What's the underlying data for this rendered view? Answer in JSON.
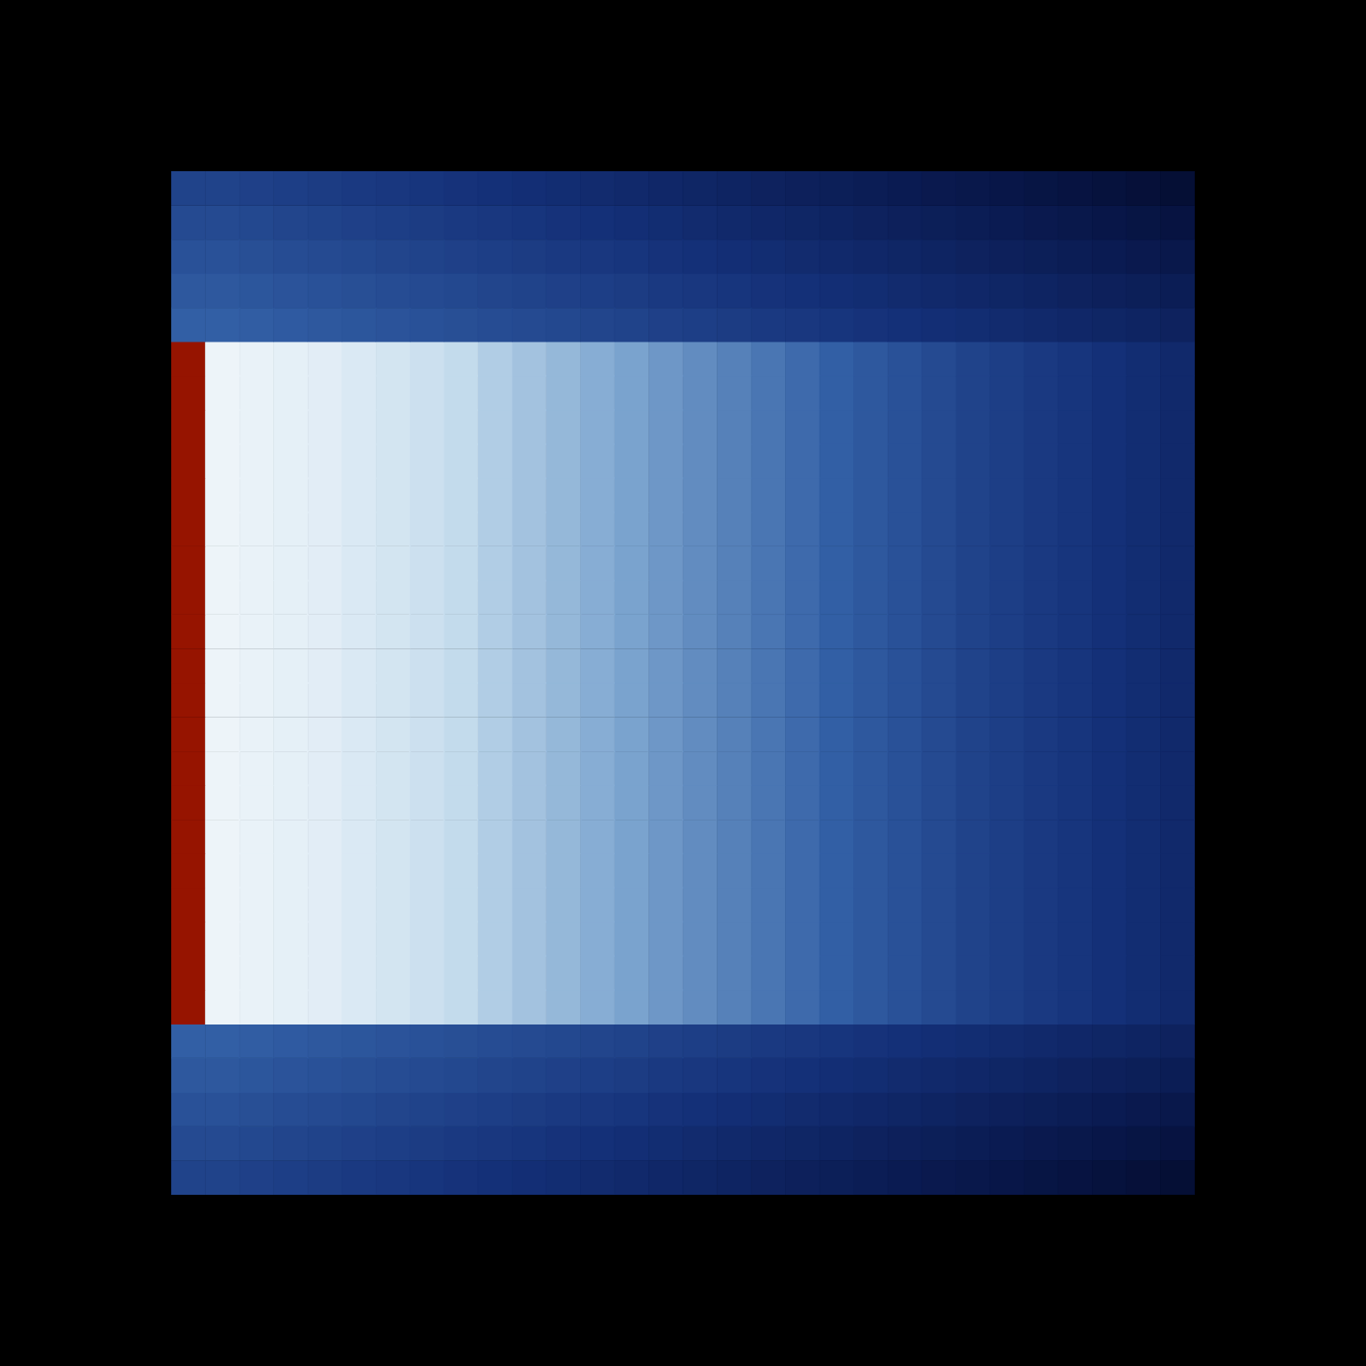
{
  "chart_data": {
    "type": "heatmap",
    "tick_labels": false,
    "grid": false,
    "cells": [
      [
        0.38,
        0.38,
        0.37,
        0.36,
        0.35,
        0.34,
        0.33,
        0.32,
        0.31,
        0.3,
        0.29,
        0.28,
        0.27,
        0.26,
        0.25,
        0.24,
        0.23,
        0.22,
        0.21,
        0.2,
        0.19,
        0.18,
        0.17,
        0.16,
        0.15,
        0.14,
        0.13,
        0.12,
        0.11,
        0.1
      ],
      [
        0.41,
        0.41,
        0.4,
        0.39,
        0.38,
        0.37,
        0.36,
        0.35,
        0.34,
        0.33,
        0.32,
        0.31,
        0.3,
        0.29,
        0.28,
        0.27,
        0.26,
        0.25,
        0.24,
        0.23,
        0.22,
        0.21,
        0.2,
        0.19,
        0.18,
        0.17,
        0.16,
        0.15,
        0.14,
        0.13
      ],
      [
        0.44,
        0.44,
        0.43,
        0.42,
        0.41,
        0.4,
        0.39,
        0.38,
        0.37,
        0.36,
        0.35,
        0.34,
        0.33,
        0.32,
        0.31,
        0.3,
        0.29,
        0.28,
        0.27,
        0.26,
        0.25,
        0.24,
        0.23,
        0.22,
        0.21,
        0.2,
        0.19,
        0.18,
        0.17,
        0.16
      ],
      [
        0.47,
        0.47,
        0.46,
        0.45,
        0.44,
        0.43,
        0.42,
        0.41,
        0.4,
        0.39,
        0.38,
        0.37,
        0.36,
        0.35,
        0.34,
        0.33,
        0.32,
        0.31,
        0.3,
        0.29,
        0.28,
        0.27,
        0.26,
        0.25,
        0.24,
        0.23,
        0.22,
        0.21,
        0.2,
        0.19
      ],
      [
        0.5,
        0.5,
        0.49,
        0.48,
        0.47,
        0.46,
        0.45,
        0.44,
        0.43,
        0.42,
        0.41,
        0.4,
        0.39,
        0.38,
        0.37,
        0.36,
        0.35,
        0.34,
        0.33,
        0.32,
        0.31,
        0.3,
        0.29,
        0.28,
        0.27,
        0.26,
        0.25,
        0.24,
        0.23,
        0.22
      ],
      [
        2,
        0.95,
        0.94,
        0.93,
        0.92,
        0.9,
        0.88,
        0.86,
        0.84,
        0.8,
        0.77,
        0.74,
        0.71,
        0.68,
        0.65,
        0.62,
        0.59,
        0.56,
        0.53,
        0.5,
        0.47,
        0.44,
        0.41,
        0.38,
        0.36,
        0.34,
        0.32,
        0.3,
        0.28,
        0.26
      ],
      [
        2,
        0.95,
        0.94,
        0.93,
        0.92,
        0.9,
        0.88,
        0.86,
        0.84,
        0.8,
        0.77,
        0.74,
        0.71,
        0.68,
        0.65,
        0.62,
        0.59,
        0.56,
        0.53,
        0.5,
        0.47,
        0.44,
        0.41,
        0.38,
        0.36,
        0.34,
        0.32,
        0.3,
        0.28,
        0.26
      ],
      [
        2,
        0.95,
        0.94,
        0.93,
        0.92,
        0.9,
        0.88,
        0.86,
        0.84,
        0.8,
        0.77,
        0.74,
        0.71,
        0.68,
        0.65,
        0.62,
        0.59,
        0.56,
        0.53,
        0.5,
        0.47,
        0.44,
        0.41,
        0.38,
        0.36,
        0.34,
        0.32,
        0.3,
        0.28,
        0.26
      ],
      [
        2,
        0.95,
        0.94,
        0.93,
        0.92,
        0.9,
        0.88,
        0.86,
        0.84,
        0.8,
        0.77,
        0.74,
        0.71,
        0.68,
        0.65,
        0.62,
        0.59,
        0.56,
        0.53,
        0.5,
        0.47,
        0.44,
        0.41,
        0.38,
        0.36,
        0.34,
        0.32,
        0.3,
        0.28,
        0.26
      ],
      [
        2,
        0.95,
        0.94,
        0.93,
        0.92,
        0.9,
        0.88,
        0.86,
        0.84,
        0.8,
        0.77,
        0.74,
        0.71,
        0.68,
        0.65,
        0.62,
        0.59,
        0.56,
        0.53,
        0.5,
        0.47,
        0.44,
        0.41,
        0.38,
        0.36,
        0.34,
        0.32,
        0.3,
        0.28,
        0.26
      ],
      [
        2,
        0.95,
        0.94,
        0.93,
        0.92,
        0.9,
        0.88,
        0.86,
        0.84,
        0.8,
        0.77,
        0.74,
        0.71,
        0.68,
        0.65,
        0.62,
        0.59,
        0.56,
        0.53,
        0.5,
        0.47,
        0.44,
        0.41,
        0.38,
        0.36,
        0.34,
        0.32,
        0.3,
        0.28,
        0.26
      ],
      [
        2,
        0.95,
        0.94,
        0.93,
        0.92,
        0.9,
        0.88,
        0.86,
        0.84,
        0.8,
        0.77,
        0.74,
        0.71,
        0.68,
        0.65,
        0.62,
        0.59,
        0.56,
        0.53,
        0.5,
        0.47,
        0.44,
        0.41,
        0.38,
        0.36,
        0.34,
        0.32,
        0.3,
        0.28,
        0.26
      ],
      [
        2,
        0.95,
        0.94,
        0.93,
        0.92,
        0.9,
        0.88,
        0.86,
        0.84,
        0.8,
        0.77,
        0.74,
        0.71,
        0.68,
        0.65,
        0.62,
        0.59,
        0.56,
        0.53,
        0.5,
        0.47,
        0.44,
        0.41,
        0.38,
        0.36,
        0.34,
        0.32,
        0.3,
        0.28,
        0.26
      ],
      [
        2,
        0.95,
        0.94,
        0.93,
        0.92,
        0.9,
        0.88,
        0.86,
        0.84,
        0.8,
        0.77,
        0.74,
        0.71,
        0.68,
        0.65,
        0.62,
        0.59,
        0.56,
        0.53,
        0.5,
        0.47,
        0.44,
        0.41,
        0.38,
        0.36,
        0.34,
        0.32,
        0.3,
        0.28,
        0.26
      ],
      [
        2,
        0.95,
        0.94,
        0.93,
        0.92,
        0.9,
        0.88,
        0.86,
        0.84,
        0.8,
        0.77,
        0.74,
        0.71,
        0.68,
        0.65,
        0.62,
        0.59,
        0.56,
        0.53,
        0.5,
        0.47,
        0.44,
        0.41,
        0.38,
        0.36,
        0.34,
        0.32,
        0.3,
        0.28,
        0.26
      ],
      [
        2,
        0.95,
        0.94,
        0.93,
        0.92,
        0.9,
        0.88,
        0.86,
        0.84,
        0.8,
        0.77,
        0.74,
        0.71,
        0.68,
        0.65,
        0.62,
        0.59,
        0.56,
        0.53,
        0.5,
        0.47,
        0.44,
        0.41,
        0.38,
        0.36,
        0.34,
        0.32,
        0.3,
        0.28,
        0.26
      ],
      [
        2,
        0.95,
        0.94,
        0.93,
        0.92,
        0.9,
        0.88,
        0.86,
        0.84,
        0.8,
        0.77,
        0.74,
        0.71,
        0.68,
        0.65,
        0.62,
        0.59,
        0.56,
        0.53,
        0.5,
        0.47,
        0.44,
        0.41,
        0.38,
        0.36,
        0.34,
        0.32,
        0.3,
        0.28,
        0.26
      ],
      [
        2,
        0.95,
        0.94,
        0.93,
        0.92,
        0.9,
        0.88,
        0.86,
        0.84,
        0.8,
        0.77,
        0.74,
        0.71,
        0.68,
        0.65,
        0.62,
        0.59,
        0.56,
        0.53,
        0.5,
        0.47,
        0.44,
        0.41,
        0.38,
        0.36,
        0.34,
        0.32,
        0.3,
        0.28,
        0.26
      ],
      [
        2,
        0.95,
        0.94,
        0.93,
        0.92,
        0.9,
        0.88,
        0.86,
        0.84,
        0.8,
        0.77,
        0.74,
        0.71,
        0.68,
        0.65,
        0.62,
        0.59,
        0.56,
        0.53,
        0.5,
        0.47,
        0.44,
        0.41,
        0.38,
        0.36,
        0.34,
        0.32,
        0.3,
        0.28,
        0.26
      ],
      [
        2,
        0.95,
        0.94,
        0.93,
        0.92,
        0.9,
        0.88,
        0.86,
        0.84,
        0.8,
        0.77,
        0.74,
        0.71,
        0.68,
        0.65,
        0.62,
        0.59,
        0.56,
        0.53,
        0.5,
        0.47,
        0.44,
        0.41,
        0.38,
        0.36,
        0.34,
        0.32,
        0.3,
        0.28,
        0.26
      ],
      [
        2,
        0.95,
        0.94,
        0.93,
        0.92,
        0.9,
        0.88,
        0.86,
        0.84,
        0.8,
        0.77,
        0.74,
        0.71,
        0.68,
        0.65,
        0.62,
        0.59,
        0.56,
        0.53,
        0.5,
        0.47,
        0.44,
        0.41,
        0.38,
        0.36,
        0.34,
        0.32,
        0.3,
        0.28,
        0.26
      ],
      [
        2,
        0.95,
        0.94,
        0.93,
        0.92,
        0.9,
        0.88,
        0.86,
        0.84,
        0.8,
        0.77,
        0.74,
        0.71,
        0.68,
        0.65,
        0.62,
        0.59,
        0.56,
        0.53,
        0.5,
        0.47,
        0.44,
        0.41,
        0.38,
        0.36,
        0.34,
        0.32,
        0.3,
        0.28,
        0.26
      ],
      [
        2,
        0.95,
        0.94,
        0.93,
        0.92,
        0.9,
        0.88,
        0.86,
        0.84,
        0.8,
        0.77,
        0.74,
        0.71,
        0.68,
        0.65,
        0.62,
        0.59,
        0.56,
        0.53,
        0.5,
        0.47,
        0.44,
        0.41,
        0.38,
        0.36,
        0.34,
        0.32,
        0.3,
        0.28,
        0.26
      ],
      [
        2,
        0.95,
        0.94,
        0.93,
        0.92,
        0.9,
        0.88,
        0.86,
        0.84,
        0.8,
        0.77,
        0.74,
        0.71,
        0.68,
        0.65,
        0.62,
        0.59,
        0.56,
        0.53,
        0.5,
        0.47,
        0.44,
        0.41,
        0.38,
        0.36,
        0.34,
        0.32,
        0.3,
        0.28,
        0.26
      ],
      [
        2,
        0.95,
        0.94,
        0.93,
        0.92,
        0.9,
        0.88,
        0.86,
        0.84,
        0.8,
        0.77,
        0.74,
        0.71,
        0.68,
        0.65,
        0.62,
        0.59,
        0.56,
        0.53,
        0.5,
        0.47,
        0.44,
        0.41,
        0.38,
        0.36,
        0.34,
        0.32,
        0.3,
        0.28,
        0.26
      ],
      [
        0.5,
        0.5,
        0.49,
        0.48,
        0.47,
        0.46,
        0.45,
        0.44,
        0.43,
        0.42,
        0.41,
        0.4,
        0.39,
        0.38,
        0.37,
        0.36,
        0.35,
        0.34,
        0.33,
        0.32,
        0.31,
        0.3,
        0.29,
        0.28,
        0.27,
        0.26,
        0.25,
        0.24,
        0.23,
        0.22
      ],
      [
        0.47,
        0.47,
        0.46,
        0.45,
        0.44,
        0.43,
        0.42,
        0.41,
        0.4,
        0.39,
        0.38,
        0.37,
        0.36,
        0.35,
        0.34,
        0.33,
        0.32,
        0.31,
        0.3,
        0.29,
        0.28,
        0.27,
        0.26,
        0.25,
        0.24,
        0.23,
        0.22,
        0.21,
        0.2,
        0.19
      ],
      [
        0.44,
        0.44,
        0.43,
        0.42,
        0.41,
        0.4,
        0.39,
        0.38,
        0.37,
        0.36,
        0.35,
        0.34,
        0.33,
        0.32,
        0.31,
        0.3,
        0.29,
        0.28,
        0.27,
        0.26,
        0.25,
        0.24,
        0.23,
        0.22,
        0.21,
        0.2,
        0.19,
        0.18,
        0.17,
        0.16
      ],
      [
        0.41,
        0.41,
        0.4,
        0.39,
        0.38,
        0.37,
        0.36,
        0.35,
        0.34,
        0.33,
        0.32,
        0.31,
        0.3,
        0.29,
        0.28,
        0.27,
        0.26,
        0.25,
        0.24,
        0.23,
        0.22,
        0.21,
        0.2,
        0.19,
        0.18,
        0.17,
        0.16,
        0.15,
        0.14,
        0.13
      ],
      [
        0.38,
        0.38,
        0.37,
        0.36,
        0.35,
        0.34,
        0.33,
        0.32,
        0.31,
        0.3,
        0.29,
        0.28,
        0.27,
        0.26,
        0.25,
        0.24,
        0.23,
        0.22,
        0.21,
        0.2,
        0.19,
        0.18,
        0.17,
        0.16,
        0.15,
        0.14,
        0.13,
        0.12,
        0.11,
        0.1
      ]
    ]
  }
}
